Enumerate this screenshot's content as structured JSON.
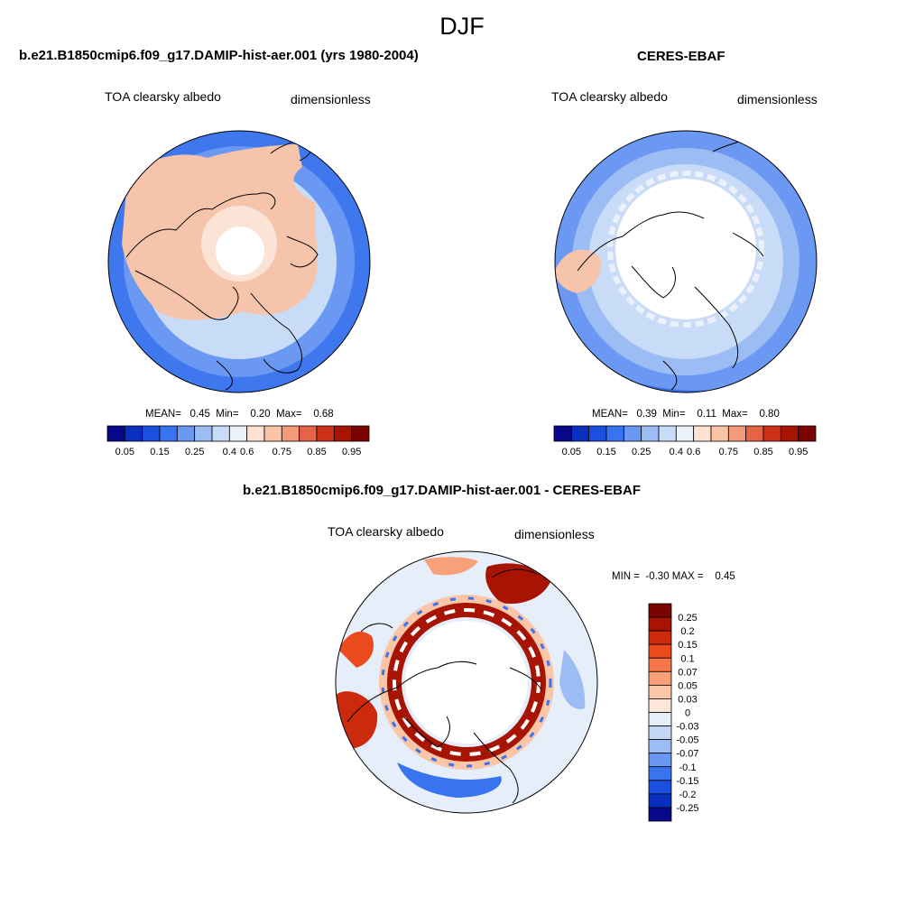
{
  "figure": {
    "title": "DJF"
  },
  "panels": {
    "model": {
      "title": "b.e21.B1850cmip6.f09_g17.DAMIP-hist-aer.001 (yrs 1980-2004)",
      "variable": "TOA clearsky albedo",
      "units": "dimensionless",
      "stats_text": "MEAN=   0.45  Min=    0.20  Max=    0.68",
      "stats": {
        "mean": 0.45,
        "min": 0.2,
        "max": 0.68
      }
    },
    "obs": {
      "title": "CERES-EBAF",
      "variable": "TOA clearsky albedo",
      "units": "dimensionless",
      "stats_text": "MEAN=   0.39  Min=    0.11  Max=    0.80",
      "stats": {
        "mean": 0.39,
        "min": 0.11,
        "max": 0.8
      }
    },
    "diff": {
      "title": "b.e21.B1850cmip6.f09_g17.DAMIP-hist-aer.001 - CERES-EBAF",
      "variable": "TOA clearsky albedo",
      "units": "dimensionless",
      "stats_text": "MIN =  -0.30 MAX =    0.45",
      "stats": {
        "min": -0.3,
        "max": 0.45
      }
    }
  },
  "colorbars": {
    "albedo": {
      "tick_labels": [
        "0.05",
        "0.15",
        "0.25",
        "0.4",
        "0.6",
        "0.75",
        "0.85",
        "0.95"
      ],
      "colors": [
        "#08088a",
        "#0a2fbf",
        "#1b4fe0",
        "#3873f0",
        "#6a98f2",
        "#9cbcf4",
        "#c8dcf8",
        "#ebf2fc",
        "#fde2d2",
        "#f9c3a6",
        "#f29a79",
        "#e56448",
        "#cc3218",
        "#a81404",
        "#7a0500"
      ]
    },
    "diff": {
      "tick_labels": [
        "0.25",
        "0.2",
        "0.15",
        "0.1",
        "0.07",
        "0.05",
        "0.03",
        "0",
        "-0.03",
        "-0.05",
        "-0.07",
        "-0.1",
        "-0.15",
        "-0.2",
        "-0.25"
      ],
      "colors": [
        "#7a0500",
        "#a81404",
        "#cc2a0c",
        "#ea4a1c",
        "#f5774a",
        "#f8a07a",
        "#fbc6a8",
        "#fce6d8",
        "#e6eefa",
        "#c4d8f6",
        "#9cbcf4",
        "#6a98f2",
        "#3873f0",
        "#1b4fe0",
        "#0a2fbf",
        "#08088a"
      ]
    }
  }
}
